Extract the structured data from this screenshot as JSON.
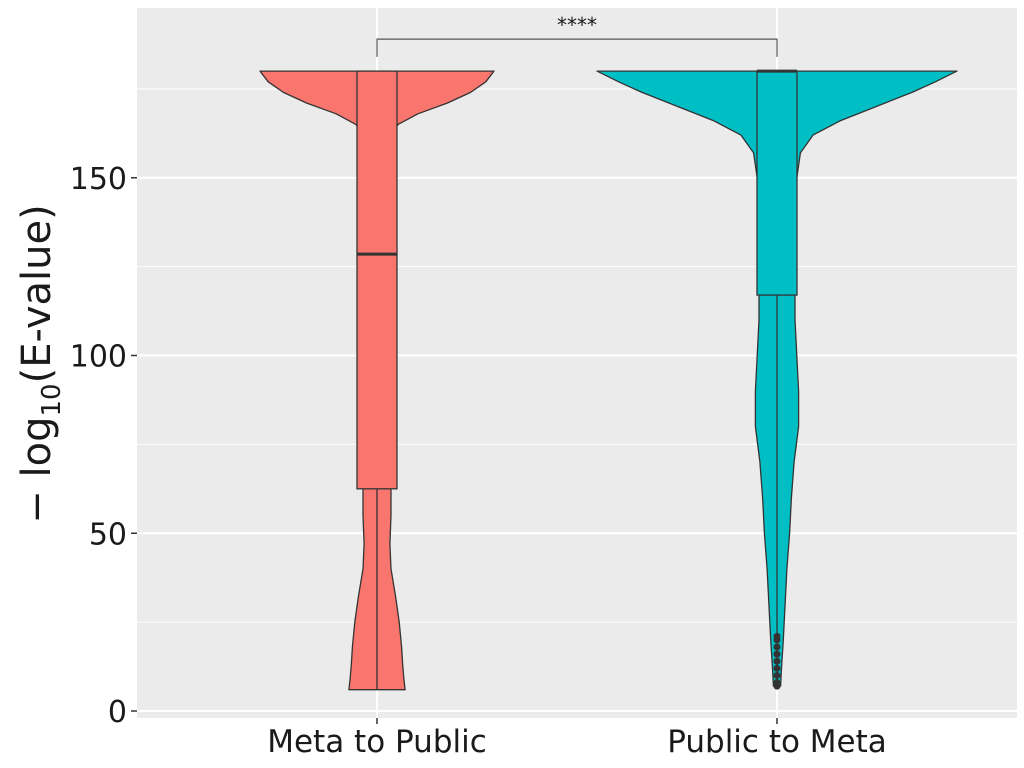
{
  "chart_data": {
    "type": "violin",
    "title": "",
    "xlabel": "",
    "ylabel": {
      "prefix": "− log",
      "subscript": "10",
      "body": "(E-value)"
    },
    "ylim": [
      -3,
      198
    ],
    "yticks": [
      0,
      50,
      100,
      150
    ],
    "grid": true,
    "categories": [
      "Meta to Public",
      "Public to Meta"
    ],
    "colors": [
      "#F8766D",
      "#00BFC4"
    ],
    "series": [
      {
        "name": "Meta to Public",
        "box": {
          "min": 6,
          "q1": 62.5,
          "median": 128.5,
          "q3": 180,
          "max": 180
        },
        "outliers": [],
        "density": [
          [
            6,
            0.24
          ],
          [
            9,
            0.23
          ],
          [
            13,
            0.22
          ],
          [
            18,
            0.21
          ],
          [
            25,
            0.19
          ],
          [
            32,
            0.16
          ],
          [
            40,
            0.12
          ],
          [
            47,
            0.11
          ],
          [
            55,
            0.12
          ],
          [
            62,
            0.12
          ],
          [
            70,
            0.11
          ],
          [
            80,
            0.09
          ],
          [
            90,
            0.09
          ],
          [
            100,
            0.085
          ],
          [
            110,
            0.08
          ],
          [
            120,
            0.085
          ],
          [
            130,
            0.08
          ],
          [
            140,
            0.085
          ],
          [
            150,
            0.085
          ],
          [
            157,
            0.09
          ],
          [
            162,
            0.12
          ],
          [
            165,
            0.18
          ],
          [
            168,
            0.35
          ],
          [
            171,
            0.6
          ],
          [
            174,
            0.8
          ],
          [
            177,
            0.93
          ],
          [
            180,
            1.0
          ]
        ]
      },
      {
        "name": "Public to Meta",
        "box": {
          "min": 7,
          "q1": 117,
          "median": 180,
          "q3": 180,
          "max": 180
        },
        "outliers": [
          7,
          8,
          10,
          12,
          14,
          16,
          18,
          20,
          21
        ],
        "density": [
          [
            7,
            0.02
          ],
          [
            12,
            0.025
          ],
          [
            20,
            0.035
          ],
          [
            30,
            0.045
          ],
          [
            40,
            0.055
          ],
          [
            50,
            0.07
          ],
          [
            60,
            0.08
          ],
          [
            70,
            0.095
          ],
          [
            80,
            0.12
          ],
          [
            90,
            0.12
          ],
          [
            100,
            0.11
          ],
          [
            110,
            0.1
          ],
          [
            120,
            0.1
          ],
          [
            130,
            0.1
          ],
          [
            140,
            0.1
          ],
          [
            150,
            0.11
          ],
          [
            157,
            0.13
          ],
          [
            162,
            0.2
          ],
          [
            166,
            0.35
          ],
          [
            170,
            0.55
          ],
          [
            174,
            0.75
          ],
          [
            177,
            0.88
          ],
          [
            180,
            1.0
          ]
        ]
      }
    ],
    "annotations": [
      {
        "text": "****",
        "between": [
          "Meta to Public",
          "Public to Meta"
        ],
        "y": 189
      }
    ]
  }
}
